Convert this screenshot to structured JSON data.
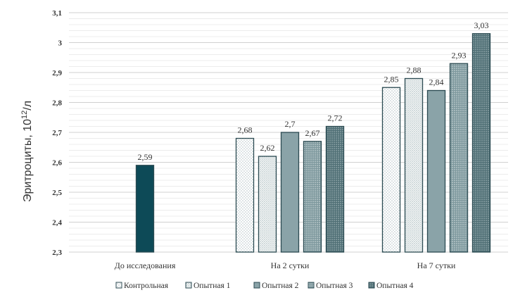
{
  "chart_data": {
    "type": "bar",
    "ylabel": "Эритроциты, 10",
    "ylabel_sup": "12",
    "ylabel_unit": "/л",
    "ylim": [
      2.3,
      3.1
    ],
    "yticks": [
      2.3,
      2.4,
      2.5,
      2.6,
      2.7,
      2.8,
      2.9,
      3.0,
      3.1
    ],
    "ytick_labels": [
      "2,3",
      "2,4",
      "2,5",
      "2,6",
      "2,7",
      "2,8",
      "2,9",
      "3",
      "3,1"
    ],
    "grid": true,
    "legend_position": "bottom",
    "categories": [
      "До исследования",
      "На 2 сутки",
      "На 7 сутки"
    ],
    "groups": [
      {
        "category": "До исследования",
        "bars": [
          {
            "series": "Опытная 4",
            "value": 2.59,
            "label": "2,59",
            "fill": "solid"
          }
        ]
      },
      {
        "category": "На 2 сутки",
        "bars": [
          {
            "series": "Контрольная",
            "value": 2.68,
            "label": "2,68"
          },
          {
            "series": "Опытная 1",
            "value": 2.62,
            "label": "2,62"
          },
          {
            "series": "Опытная 2",
            "value": 2.7,
            "label": "2,7"
          },
          {
            "series": "Опытная 3",
            "value": 2.67,
            "label": "2,67"
          },
          {
            "series": "Опытная 4",
            "value": 2.72,
            "label": "2,72"
          }
        ]
      },
      {
        "category": "На 7 сутки",
        "bars": [
          {
            "series": "Контрольная",
            "value": 2.85,
            "label": "2,85"
          },
          {
            "series": "Опытная 1",
            "value": 2.88,
            "label": "2,88"
          },
          {
            "series": "Опытная 2",
            "value": 2.84,
            "label": "2,84"
          },
          {
            "series": "Опытная 3",
            "value": 2.93,
            "label": "2,93"
          },
          {
            "series": "Опытная 4",
            "value": 3.03,
            "label": "3,03"
          }
        ]
      }
    ],
    "series": [
      {
        "name": "Контрольная",
        "pattern": "dots-sparse",
        "color": "#ffffff"
      },
      {
        "name": "Опытная 1",
        "pattern": "dots-dense",
        "color": "#e8edee"
      },
      {
        "name": "Опытная 2",
        "pattern": "solid",
        "color": "#8aa3a8"
      },
      {
        "name": "Опытная 3",
        "pattern": "dots-dark",
        "color": "#6f8d93"
      },
      {
        "name": "Опытная 4",
        "pattern": "dots-darkest",
        "color": "#5a7a80"
      }
    ],
    "colors": {
      "outline": "#2b4a52",
      "solid_bar": "#0d4a57",
      "grid": "#d9d9d9",
      "text": "#333333"
    }
  }
}
